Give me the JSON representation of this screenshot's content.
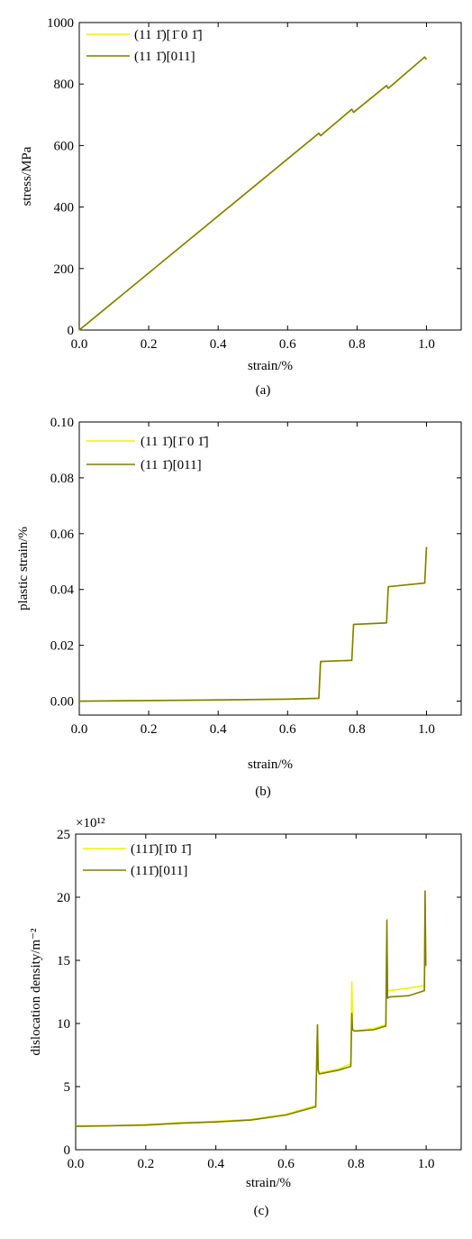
{
  "colors": {
    "series_a": "#f2f200",
    "series_b": "#7f7f00",
    "axis": "#000000"
  },
  "chart_data": [
    {
      "type": "line",
      "caption": "(a)",
      "xlabel": "strain/%",
      "ylabel": "stress/MPa",
      "xlim": [
        0,
        1.1
      ],
      "ylim": [
        0,
        1000
      ],
      "xticks": [
        0.0,
        0.2,
        0.4,
        0.6,
        0.8,
        1.0
      ],
      "xtick_labels": [
        "0.0",
        "0.2",
        "0.4",
        "0.6",
        "0.8",
        "1.0"
      ],
      "yticks": [
        0,
        200,
        400,
        600,
        800,
        1000
      ],
      "ytick_labels": [
        "0",
        "200",
        "400",
        "600",
        "800",
        "1000"
      ],
      "legend_position": "top-left",
      "series": [
        {
          "name": "(11 1̄)[1̄ 0 1̄]",
          "color_key": "series_a",
          "x": [
            0,
            0.69,
            0.695,
            0.785,
            0.79,
            0.885,
            0.89,
            0.995,
            1.0
          ],
          "y": [
            0,
            640,
            632,
            718,
            708,
            795,
            786,
            888,
            880
          ]
        },
        {
          "name": "(11 1̄)[011]",
          "color_key": "series_b",
          "x": [
            0,
            0.69,
            0.695,
            0.785,
            0.79,
            0.885,
            0.89,
            0.995,
            1.0
          ],
          "y": [
            0,
            640,
            632,
            718,
            708,
            795,
            786,
            888,
            880
          ]
        }
      ]
    },
    {
      "type": "line",
      "caption": "(b)",
      "xlabel": "strain/%",
      "ylabel": "plastic strain/%",
      "xlim": [
        0,
        1.1
      ],
      "ylim": [
        -0.005,
        0.1
      ],
      "xticks": [
        0.0,
        0.2,
        0.4,
        0.6,
        0.8,
        1.0
      ],
      "xtick_labels": [
        "0.0",
        "0.2",
        "0.4",
        "0.6",
        "0.8",
        "1.0"
      ],
      "yticks": [
        0.0,
        0.02,
        0.04,
        0.06,
        0.08,
        0.1
      ],
      "ytick_labels": [
        "0.00",
        "0.02",
        "0.04",
        "0.06",
        "0.08",
        "0.10"
      ],
      "legend_position": "top-left",
      "series": [
        {
          "name": "(11 1̄)[1̄ 0 1̄]",
          "color_key": "series_a",
          "x": [
            0,
            0.3,
            0.6,
            0.69,
            0.695,
            0.785,
            0.79,
            0.885,
            0.89,
            0.995,
            1.0
          ],
          "y": [
            0,
            0.0003,
            0.0007,
            0.001,
            0.0142,
            0.0146,
            0.0275,
            0.028,
            0.041,
            0.0423,
            0.0552
          ]
        },
        {
          "name": "(11 1̄)[011]",
          "color_key": "series_b",
          "x": [
            0,
            0.3,
            0.6,
            0.69,
            0.695,
            0.785,
            0.79,
            0.885,
            0.89,
            0.995,
            1.0
          ],
          "y": [
            0,
            0.0003,
            0.0007,
            0.001,
            0.0142,
            0.0146,
            0.0275,
            0.028,
            0.041,
            0.0423,
            0.0552
          ]
        }
      ]
    },
    {
      "type": "line",
      "caption": "(c)",
      "xlabel": "strain/%",
      "ylabel": "dislocation density/m⁻²",
      "multiplier_label": "×10¹²",
      "xlim": [
        0,
        1.1
      ],
      "ylim": [
        0,
        25
      ],
      "xticks": [
        0.0,
        0.2,
        0.4,
        0.6,
        0.8,
        1.0
      ],
      "xtick_labels": [
        "0.0",
        "0.2",
        "0.4",
        "0.6",
        "0.8",
        "1.0"
      ],
      "yticks": [
        0,
        5,
        10,
        15,
        20,
        25
      ],
      "ytick_labels": [
        "0",
        "5",
        "10",
        "15",
        "20",
        "25"
      ],
      "legend_position": "top-left",
      "series": [
        {
          "name": "(111̄)[1̄0 1̄]",
          "color_key": "series_a",
          "x": [
            0,
            0.1,
            0.2,
            0.3,
            0.4,
            0.5,
            0.6,
            0.685,
            0.69,
            0.692,
            0.695,
            0.75,
            0.785,
            0.788,
            0.79,
            0.795,
            0.85,
            0.885,
            0.888,
            0.89,
            0.895,
            0.95,
            0.995,
            0.997,
            0.999,
            1.0
          ],
          "y": [
            1.9,
            1.9,
            2.0,
            2.15,
            2.25,
            2.4,
            2.8,
            3.5,
            9.8,
            6.5,
            6.1,
            6.4,
            6.8,
            13.3,
            9.6,
            9.4,
            9.6,
            9.9,
            16.5,
            12.7,
            12.6,
            12.8,
            13.0,
            19.5,
            14.6,
            14.6
          ]
        },
        {
          "name": "(111̄)[011]",
          "color_key": "series_b",
          "x": [
            0,
            0.1,
            0.2,
            0.3,
            0.4,
            0.5,
            0.6,
            0.685,
            0.69,
            0.692,
            0.695,
            0.75,
            0.785,
            0.788,
            0.79,
            0.795,
            0.85,
            0.885,
            0.888,
            0.89,
            0.895,
            0.95,
            0.995,
            0.997,
            0.999,
            1.0
          ],
          "y": [
            1.85,
            1.9,
            1.95,
            2.1,
            2.2,
            2.35,
            2.75,
            3.4,
            9.9,
            6.3,
            6.0,
            6.3,
            6.6,
            10.8,
            9.5,
            9.4,
            9.5,
            9.8,
            18.2,
            12.0,
            12.1,
            12.2,
            12.6,
            20.5,
            14.6,
            14.6
          ]
        }
      ]
    }
  ]
}
